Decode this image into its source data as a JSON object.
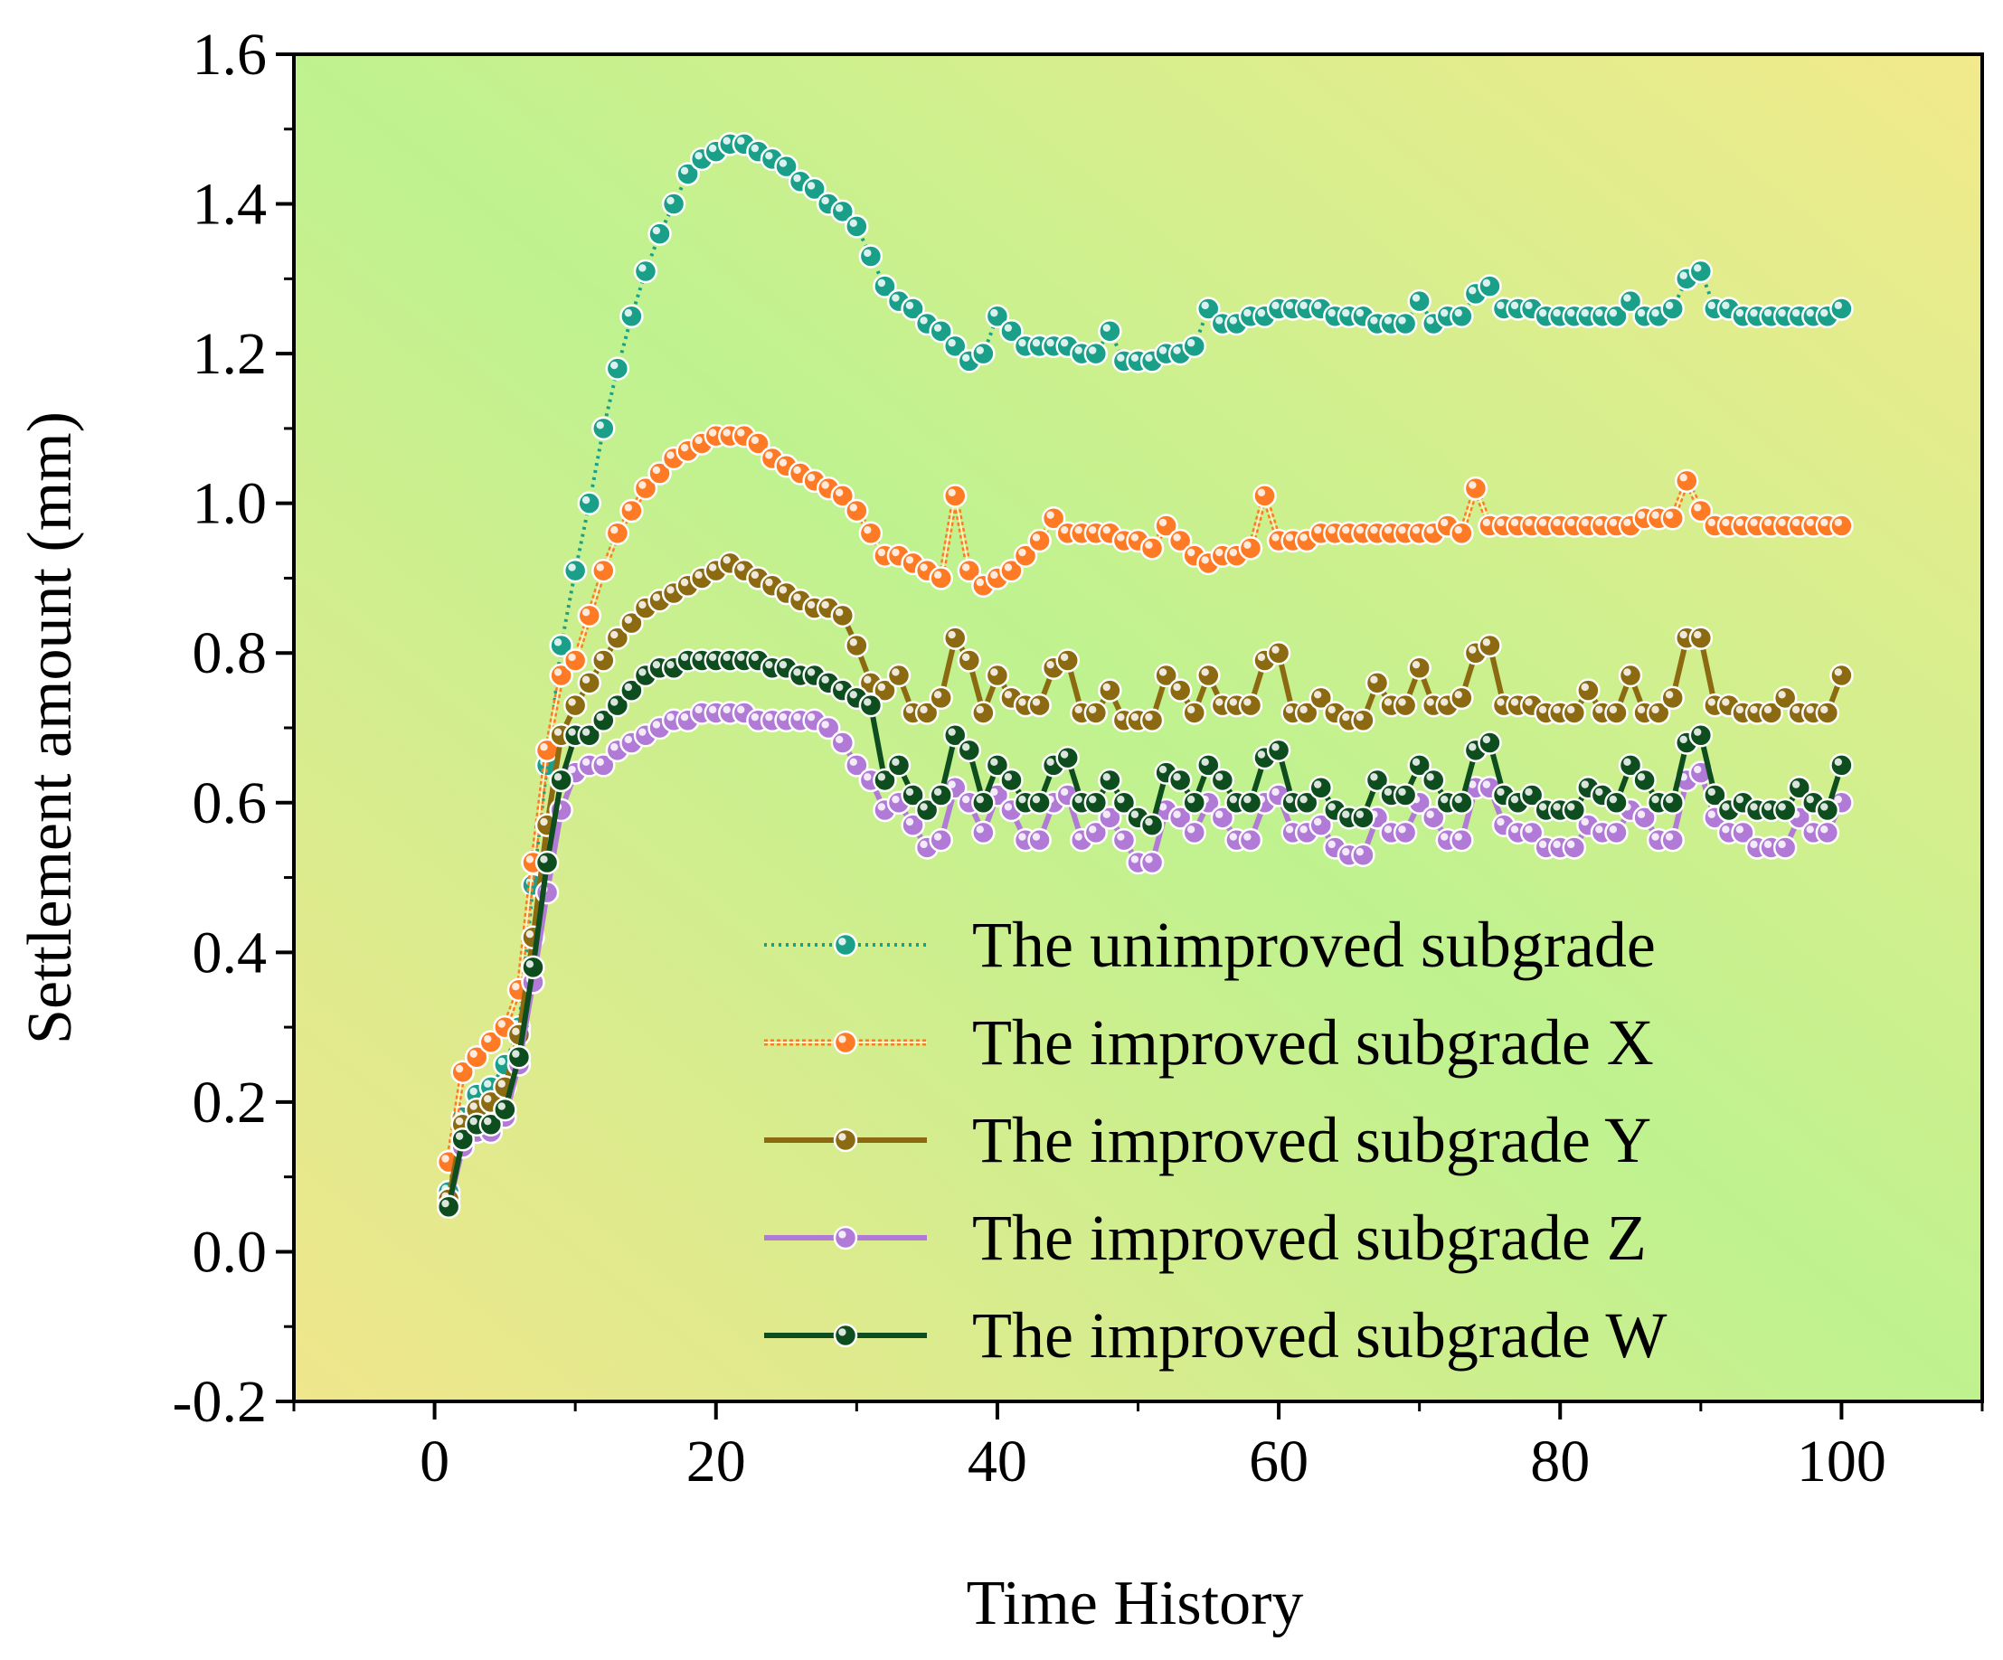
{
  "chart_data": {
    "type": "line",
    "title": "",
    "xlabel": "Time History",
    "ylabel": "Settlement amount (mm)",
    "xlim": [
      -10,
      110
    ],
    "ylim": [
      -0.2,
      1.6
    ],
    "xticks": [
      0,
      20,
      40,
      60,
      80,
      100
    ],
    "yticks": [
      -0.2,
      0.0,
      0.2,
      0.4,
      0.6,
      0.8,
      1.0,
      1.2,
      1.4,
      1.6
    ],
    "xtick_labels": [
      "0",
      "20",
      "40",
      "60",
      "80",
      "100"
    ],
    "ytick_labels": [
      "-0.2",
      "0.0",
      "0.2",
      "0.4",
      "0.6",
      "0.8",
      "1.0",
      "1.2",
      "1.4",
      "1.6"
    ],
    "legend_position": "bottom-right",
    "background_gradient": [
      "#f0e68c",
      "#bff28f",
      "#f2ea8c"
    ],
    "series": [
      {
        "name": "The unimproved subgrade",
        "color": "#1aa089",
        "line_style": "dotted",
        "x": [
          1,
          2,
          3,
          4,
          5,
          6,
          7,
          8,
          9,
          10,
          11,
          12,
          13,
          14,
          15,
          16,
          17,
          18,
          19,
          20,
          21,
          22,
          23,
          24,
          25,
          26,
          27,
          28,
          29,
          30,
          31,
          32,
          33,
          34,
          35,
          36,
          37,
          38,
          39,
          40,
          41,
          42,
          43,
          44,
          45,
          46,
          47,
          48,
          49,
          50,
          51,
          52,
          53,
          54,
          55,
          56,
          57,
          58,
          59,
          60,
          61,
          62,
          63,
          64,
          65,
          66,
          67,
          68,
          69,
          70,
          71,
          72,
          73,
          74,
          75,
          76,
          77,
          78,
          79,
          80,
          81,
          82,
          83,
          84,
          85,
          86,
          87,
          88,
          89,
          90,
          91,
          92,
          93,
          94,
          95,
          96,
          97,
          98,
          99,
          100
        ],
        "values": [
          0.08,
          0.18,
          0.21,
          0.22,
          0.25,
          0.3,
          0.49,
          0.65,
          0.81,
          0.91,
          1.0,
          1.1,
          1.18,
          1.25,
          1.31,
          1.36,
          1.4,
          1.44,
          1.46,
          1.47,
          1.48,
          1.48,
          1.47,
          1.46,
          1.45,
          1.43,
          1.42,
          1.4,
          1.39,
          1.37,
          1.33,
          1.29,
          1.27,
          1.26,
          1.24,
          1.23,
          1.21,
          1.19,
          1.2,
          1.25,
          1.23,
          1.21,
          1.21,
          1.21,
          1.21,
          1.2,
          1.2,
          1.23,
          1.19,
          1.19,
          1.19,
          1.2,
          1.2,
          1.21,
          1.26,
          1.24,
          1.24,
          1.25,
          1.25,
          1.26,
          1.26,
          1.26,
          1.26,
          1.25,
          1.25,
          1.25,
          1.24,
          1.24,
          1.24,
          1.27,
          1.24,
          1.25,
          1.25,
          1.28,
          1.29,
          1.26,
          1.26,
          1.26,
          1.25,
          1.25,
          1.25,
          1.25,
          1.25,
          1.25,
          1.27,
          1.25,
          1.25,
          1.26,
          1.3,
          1.31,
          1.26,
          1.26,
          1.25,
          1.25,
          1.25,
          1.25,
          1.25,
          1.25,
          1.25,
          1.26
        ]
      },
      {
        "name": "The improved subgrade X",
        "color": "#ff7a24",
        "line_style": "double",
        "x": [
          1,
          2,
          3,
          4,
          5,
          6,
          7,
          8,
          9,
          10,
          11,
          12,
          13,
          14,
          15,
          16,
          17,
          18,
          19,
          20,
          21,
          22,
          23,
          24,
          25,
          26,
          27,
          28,
          29,
          30,
          31,
          32,
          33,
          34,
          35,
          36,
          37,
          38,
          39,
          40,
          41,
          42,
          43,
          44,
          45,
          46,
          47,
          48,
          49,
          50,
          51,
          52,
          53,
          54,
          55,
          56,
          57,
          58,
          59,
          60,
          61,
          62,
          63,
          64,
          65,
          66,
          67,
          68,
          69,
          70,
          71,
          72,
          73,
          74,
          75,
          76,
          77,
          78,
          79,
          80,
          81,
          82,
          83,
          84,
          85,
          86,
          87,
          88,
          89,
          90,
          91,
          92,
          93,
          94,
          95,
          96,
          97,
          98,
          99,
          100
        ],
        "values": [
          0.12,
          0.24,
          0.26,
          0.28,
          0.3,
          0.35,
          0.52,
          0.67,
          0.77,
          0.79,
          0.85,
          0.91,
          0.96,
          0.99,
          1.02,
          1.04,
          1.06,
          1.07,
          1.08,
          1.09,
          1.09,
          1.09,
          1.08,
          1.06,
          1.05,
          1.04,
          1.03,
          1.02,
          1.01,
          0.99,
          0.96,
          0.93,
          0.93,
          0.92,
          0.91,
          0.9,
          1.01,
          0.91,
          0.89,
          0.9,
          0.91,
          0.93,
          0.95,
          0.98,
          0.96,
          0.96,
          0.96,
          0.96,
          0.95,
          0.95,
          0.94,
          0.97,
          0.95,
          0.93,
          0.92,
          0.93,
          0.93,
          0.94,
          1.01,
          0.95,
          0.95,
          0.95,
          0.96,
          0.96,
          0.96,
          0.96,
          0.96,
          0.96,
          0.96,
          0.96,
          0.96,
          0.97,
          0.96,
          1.02,
          0.97,
          0.97,
          0.97,
          0.97,
          0.97,
          0.97,
          0.97,
          0.97,
          0.97,
          0.97,
          0.97,
          0.98,
          0.98,
          0.98,
          1.03,
          0.99,
          0.97,
          0.97,
          0.97,
          0.97,
          0.97,
          0.97,
          0.97,
          0.97,
          0.97,
          0.97
        ]
      },
      {
        "name": "The improved subgrade Y",
        "color": "#8b6a12",
        "line_style": "solid",
        "x": [
          1,
          2,
          3,
          4,
          5,
          6,
          7,
          8,
          9,
          10,
          11,
          12,
          13,
          14,
          15,
          16,
          17,
          18,
          19,
          20,
          21,
          22,
          23,
          24,
          25,
          26,
          27,
          28,
          29,
          30,
          31,
          32,
          33,
          34,
          35,
          36,
          37,
          38,
          39,
          40,
          41,
          42,
          43,
          44,
          45,
          46,
          47,
          48,
          49,
          50,
          51,
          52,
          53,
          54,
          55,
          56,
          57,
          58,
          59,
          60,
          61,
          62,
          63,
          64,
          65,
          66,
          67,
          68,
          69,
          70,
          71,
          72,
          73,
          74,
          75,
          76,
          77,
          78,
          79,
          80,
          81,
          82,
          83,
          84,
          85,
          86,
          87,
          88,
          89,
          90,
          91,
          92,
          93,
          94,
          95,
          96,
          97,
          98,
          99,
          100
        ],
        "values": [
          0.07,
          0.17,
          0.19,
          0.2,
          0.22,
          0.29,
          0.42,
          0.57,
          0.69,
          0.73,
          0.76,
          0.79,
          0.82,
          0.84,
          0.86,
          0.87,
          0.88,
          0.89,
          0.9,
          0.91,
          0.92,
          0.91,
          0.9,
          0.89,
          0.88,
          0.87,
          0.86,
          0.86,
          0.85,
          0.81,
          0.76,
          0.75,
          0.77,
          0.72,
          0.72,
          0.74,
          0.82,
          0.79,
          0.72,
          0.77,
          0.74,
          0.73,
          0.73,
          0.78,
          0.79,
          0.72,
          0.72,
          0.75,
          0.71,
          0.71,
          0.71,
          0.77,
          0.75,
          0.72,
          0.77,
          0.73,
          0.73,
          0.73,
          0.79,
          0.8,
          0.72,
          0.72,
          0.74,
          0.72,
          0.71,
          0.71,
          0.76,
          0.73,
          0.73,
          0.78,
          0.73,
          0.73,
          0.74,
          0.8,
          0.81,
          0.73,
          0.73,
          0.73,
          0.72,
          0.72,
          0.72,
          0.75,
          0.72,
          0.72,
          0.77,
          0.72,
          0.72,
          0.74,
          0.82,
          0.82,
          0.73,
          0.73,
          0.72,
          0.72,
          0.72,
          0.74,
          0.72,
          0.72,
          0.72,
          0.77
        ]
      },
      {
        "name": "The improved subgrade Z",
        "color": "#b07ad6",
        "line_style": "solid",
        "x": [
          1,
          2,
          3,
          4,
          5,
          6,
          7,
          8,
          9,
          10,
          11,
          12,
          13,
          14,
          15,
          16,
          17,
          18,
          19,
          20,
          21,
          22,
          23,
          24,
          25,
          26,
          27,
          28,
          29,
          30,
          31,
          32,
          33,
          34,
          35,
          36,
          37,
          38,
          39,
          40,
          41,
          42,
          43,
          44,
          45,
          46,
          47,
          48,
          49,
          50,
          51,
          52,
          53,
          54,
          55,
          56,
          57,
          58,
          59,
          60,
          61,
          62,
          63,
          64,
          65,
          66,
          67,
          68,
          69,
          70,
          71,
          72,
          73,
          74,
          75,
          76,
          77,
          78,
          79,
          80,
          81,
          82,
          83,
          84,
          85,
          86,
          87,
          88,
          89,
          90,
          91,
          92,
          93,
          94,
          95,
          96,
          97,
          98,
          99,
          100
        ],
        "values": [
          0.06,
          0.14,
          0.16,
          0.16,
          0.18,
          0.25,
          0.36,
          0.48,
          0.59,
          0.64,
          0.65,
          0.65,
          0.67,
          0.68,
          0.69,
          0.7,
          0.71,
          0.71,
          0.72,
          0.72,
          0.72,
          0.72,
          0.71,
          0.71,
          0.71,
          0.71,
          0.71,
          0.7,
          0.68,
          0.65,
          0.63,
          0.59,
          0.6,
          0.57,
          0.54,
          0.55,
          0.62,
          0.6,
          0.56,
          0.61,
          0.59,
          0.55,
          0.55,
          0.6,
          0.61,
          0.55,
          0.56,
          0.58,
          0.55,
          0.52,
          0.52,
          0.59,
          0.58,
          0.56,
          0.6,
          0.58,
          0.55,
          0.55,
          0.6,
          0.61,
          0.56,
          0.56,
          0.57,
          0.54,
          0.53,
          0.53,
          0.58,
          0.56,
          0.56,
          0.6,
          0.58,
          0.55,
          0.55,
          0.62,
          0.62,
          0.57,
          0.56,
          0.56,
          0.54,
          0.54,
          0.54,
          0.57,
          0.56,
          0.56,
          0.59,
          0.58,
          0.55,
          0.55,
          0.63,
          0.64,
          0.58,
          0.56,
          0.56,
          0.54,
          0.54,
          0.54,
          0.58,
          0.56,
          0.56,
          0.6
        ]
      },
      {
        "name": "The improved subgrade W",
        "color": "#0e4e1e",
        "line_style": "solid",
        "x": [
          1,
          2,
          3,
          4,
          5,
          6,
          7,
          8,
          9,
          10,
          11,
          12,
          13,
          14,
          15,
          16,
          17,
          18,
          19,
          20,
          21,
          22,
          23,
          24,
          25,
          26,
          27,
          28,
          29,
          30,
          31,
          32,
          33,
          34,
          35,
          36,
          37,
          38,
          39,
          40,
          41,
          42,
          43,
          44,
          45,
          46,
          47,
          48,
          49,
          50,
          51,
          52,
          53,
          54,
          55,
          56,
          57,
          58,
          59,
          60,
          61,
          62,
          63,
          64,
          65,
          66,
          67,
          68,
          69,
          70,
          71,
          72,
          73,
          74,
          75,
          76,
          77,
          78,
          79,
          80,
          81,
          82,
          83,
          84,
          85,
          86,
          87,
          88,
          89,
          90,
          91,
          92,
          93,
          94,
          95,
          96,
          97,
          98,
          99,
          100
        ],
        "values": [
          0.06,
          0.15,
          0.17,
          0.17,
          0.19,
          0.26,
          0.38,
          0.52,
          0.63,
          0.69,
          0.69,
          0.71,
          0.73,
          0.75,
          0.77,
          0.78,
          0.78,
          0.79,
          0.79,
          0.79,
          0.79,
          0.79,
          0.79,
          0.78,
          0.78,
          0.77,
          0.77,
          0.76,
          0.75,
          0.74,
          0.73,
          0.63,
          0.65,
          0.61,
          0.59,
          0.61,
          0.69,
          0.67,
          0.6,
          0.65,
          0.63,
          0.6,
          0.6,
          0.65,
          0.66,
          0.6,
          0.6,
          0.63,
          0.6,
          0.58,
          0.57,
          0.64,
          0.63,
          0.6,
          0.65,
          0.63,
          0.6,
          0.6,
          0.66,
          0.67,
          0.6,
          0.6,
          0.62,
          0.59,
          0.58,
          0.58,
          0.63,
          0.61,
          0.61,
          0.65,
          0.63,
          0.6,
          0.6,
          0.67,
          0.68,
          0.61,
          0.6,
          0.61,
          0.59,
          0.59,
          0.59,
          0.62,
          0.61,
          0.6,
          0.65,
          0.63,
          0.6,
          0.6,
          0.68,
          0.69,
          0.61,
          0.59,
          0.6,
          0.59,
          0.59,
          0.59,
          0.62,
          0.6,
          0.59,
          0.65
        ]
      }
    ]
  }
}
